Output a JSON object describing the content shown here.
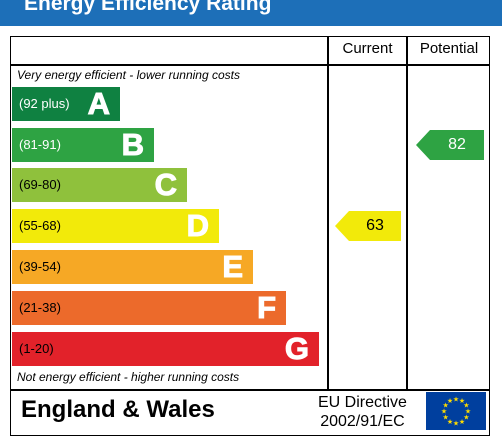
{
  "title": "Energy Efficiency Rating",
  "columns": {
    "current": "Current",
    "potential": "Potential"
  },
  "top_caption": "Very energy efficient - lower running costs",
  "bottom_caption": "Not energy efficient - higher running costs",
  "bands": [
    {
      "range": "(92 plus)",
      "letter": "A",
      "color": "#0f8141"
    },
    {
      "range": "(81-91)",
      "letter": "B",
      "color": "#2ea343"
    },
    {
      "range": "(69-80)",
      "letter": "C",
      "color": "#8fc13c"
    },
    {
      "range": "(55-68)",
      "letter": "D",
      "color": "#f2ea0a"
    },
    {
      "range": "(39-54)",
      "letter": "E",
      "color": "#f6a825"
    },
    {
      "range": "(21-38)",
      "letter": "F",
      "color": "#ec6a2b"
    },
    {
      "range": "(1-20)",
      "letter": "G",
      "color": "#e2222a"
    }
  ],
  "current": {
    "value": "63",
    "band": "D",
    "color": "#f2ea0a"
  },
  "potential": {
    "value": "82",
    "band": "B",
    "color": "#2ea343"
  },
  "footer": {
    "region": "England & Wales",
    "directive_line1": "EU Directive",
    "directive_line2": "2002/91/EC"
  },
  "icons": {
    "flag": "eu-flag-icon"
  }
}
